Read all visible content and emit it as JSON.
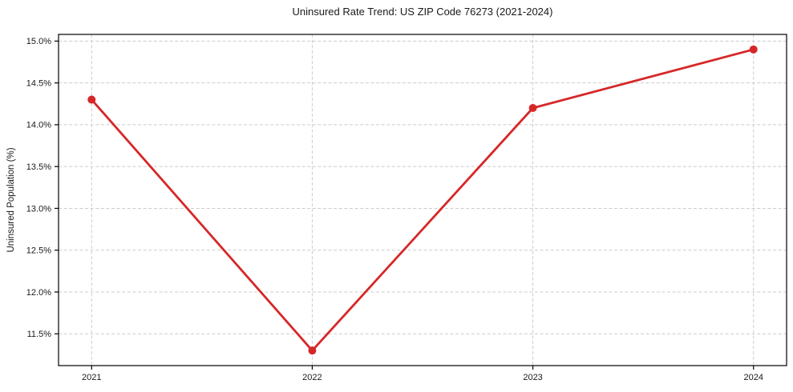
{
  "chart_data": {
    "type": "line",
    "title": "Uninsured Rate Trend: US ZIP Code 76273 (2021-2024)",
    "xlabel": "",
    "ylabel": "Uninsured Population (%)",
    "x": [
      2021,
      2022,
      2023,
      2024
    ],
    "x_tick_labels": [
      "2021",
      "2022",
      "2023",
      "2024"
    ],
    "values": [
      14.3,
      11.3,
      14.2,
      14.9
    ],
    "y_ticks": [
      11.5,
      12.0,
      12.5,
      13.0,
      13.5,
      14.0,
      14.5,
      15.0
    ],
    "y_tick_labels": [
      "11.5%",
      "12.0%",
      "12.5%",
      "13.0%",
      "13.5%",
      "14.0%",
      "14.5%",
      "15.0%"
    ],
    "xlim": [
      2020.85,
      2024.15
    ],
    "ylim": [
      11.12,
      15.08
    ],
    "grid": true,
    "grid_line_style": "dashed",
    "legend_position": "none",
    "colors": {
      "line": "#d62728",
      "marker": "#d62728",
      "grid": "#cccccc",
      "spine": "#000000",
      "tick_text": "#1a1a1a",
      "background": "#ffffff"
    }
  }
}
